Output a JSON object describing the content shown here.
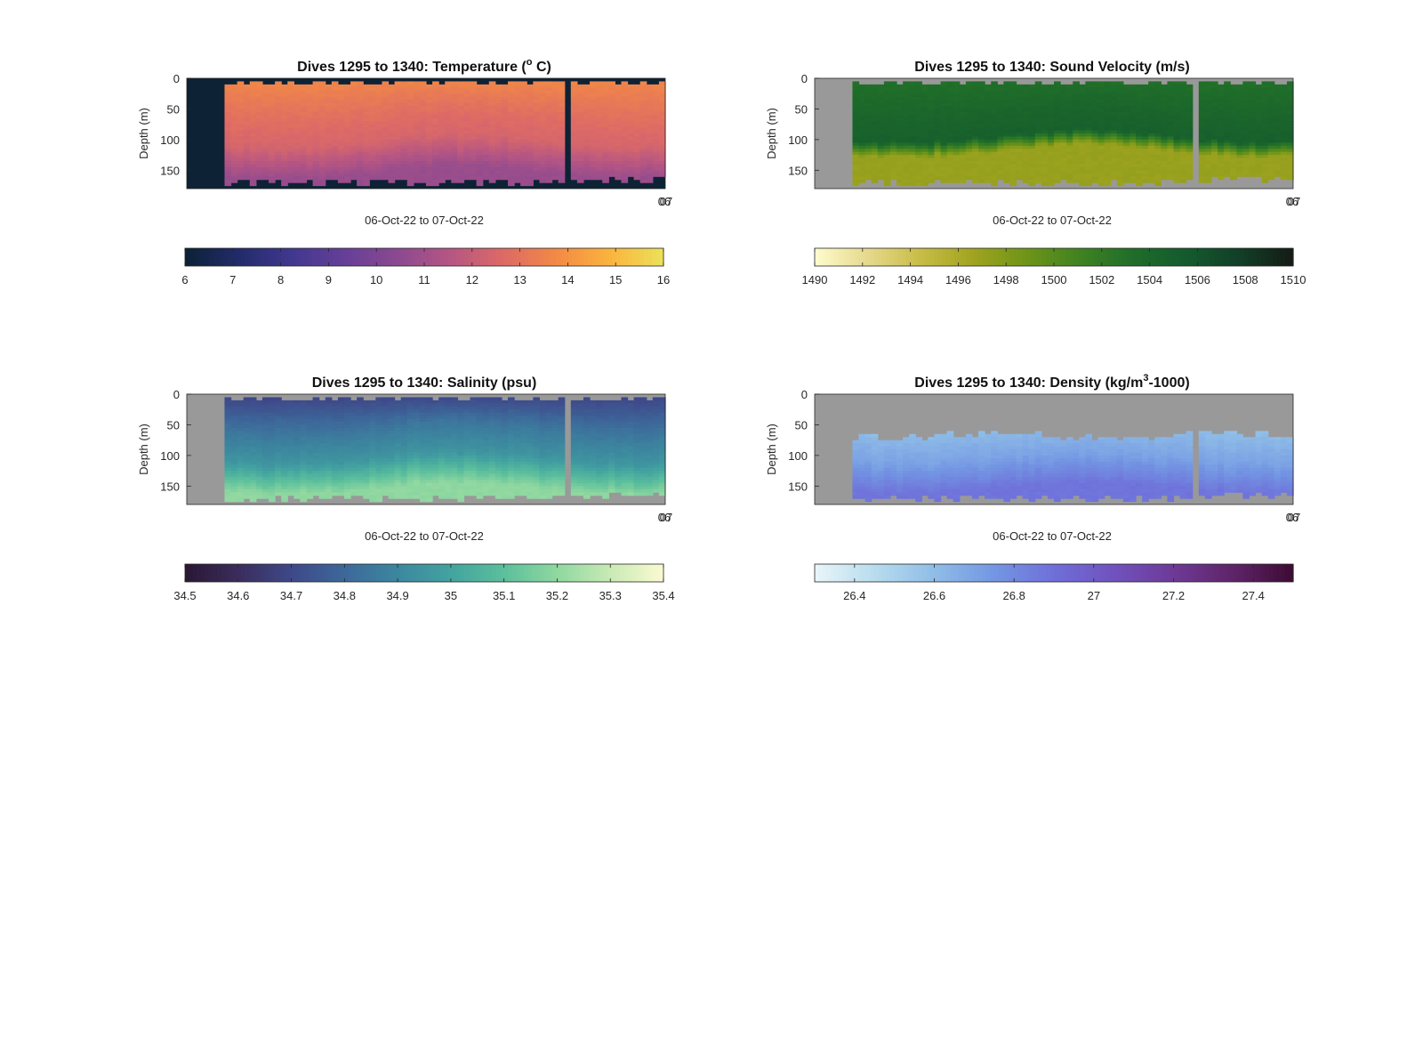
{
  "figure": {
    "background": "#ffffff",
    "nodata_color": "#999999"
  },
  "chart_data": [
    {
      "type": "heatmap",
      "title_prefix": "Dives 1295 to 1340: Temperature (",
      "title_sup": "o",
      "title_suffix": " C)",
      "ylabel": "Depth (m)",
      "xlabel": "06-Oct-22 to 07-Oct-22",
      "x_tick_labels": [
        "06",
        "07"
      ],
      "y_ticks": [
        0,
        50,
        100,
        150
      ],
      "ylim": [
        0,
        180
      ],
      "nodata_color": "#0d2235",
      "colorbar": {
        "min": 6,
        "max": 16,
        "ticks": [
          "6",
          "7",
          "8",
          "9",
          "10",
          "11",
          "12",
          "13",
          "14",
          "15",
          "16"
        ],
        "colors": [
          "#0b2135",
          "#222b6a",
          "#41378f",
          "#653f97",
          "#8b4990",
          "#b65683",
          "#dd6a66",
          "#f38a45",
          "#fab43e",
          "#ece15a"
        ]
      },
      "profile": {
        "top_value": 13.7,
        "mid_value": 12.4,
        "deep_value": 10.8
      }
    },
    {
      "type": "heatmap",
      "title_prefix": "Dives 1295 to 1340: Sound Velocity (m/s)",
      "title_sup": "",
      "title_suffix": "",
      "ylabel": "Depth (m)",
      "xlabel": "06-Oct-22 to 07-Oct-22",
      "x_tick_labels": [
        "06",
        "07"
      ],
      "y_ticks": [
        0,
        50,
        100,
        150
      ],
      "ylim": [
        0,
        180
      ],
      "nodata_color": "#999999",
      "colorbar": {
        "min": 1490,
        "max": 1510,
        "ticks": [
          "1490",
          "1492",
          "1494",
          "1496",
          "1498",
          "1500",
          "1502",
          "1504",
          "1506",
          "1508",
          "1510"
        ],
        "colors": [
          "#fefccd",
          "#e6d98c",
          "#c8bc46",
          "#9fa31f",
          "#6e9418",
          "#3f8221",
          "#1f6d2a",
          "#145a2e",
          "#123f27",
          "#141b14"
        ]
      },
      "profile": {
        "top_value": 1503.0,
        "mid_value": 1505.0,
        "deep_value": 1497.0
      }
    },
    {
      "type": "heatmap",
      "title_prefix": "Dives 1295 to 1340: Salinity (psu)",
      "title_sup": "",
      "title_suffix": "",
      "ylabel": "Depth (m)",
      "xlabel": "06-Oct-22 to 07-Oct-22",
      "x_tick_labels": [
        "06",
        "07"
      ],
      "y_ticks": [
        0,
        50,
        100,
        150
      ],
      "ylim": [
        0,
        180
      ],
      "nodata_color": "#999999",
      "colorbar": {
        "min": 34.5,
        "max": 35.4,
        "ticks": [
          "34.5",
          "34.6",
          "34.7",
          "34.8",
          "34.9",
          "35",
          "35.1",
          "35.2",
          "35.3",
          "35.4"
        ],
        "colors": [
          "#2a1733",
          "#3a2d5c",
          "#3e4889",
          "#3d689a",
          "#3c879f",
          "#43a3a0",
          "#5cbf9c",
          "#8fd7a0",
          "#c9eab4",
          "#fbfad2"
        ]
      },
      "profile": {
        "top_value": 34.68,
        "mid_value": 34.95,
        "deep_value": 35.2
      }
    },
    {
      "type": "heatmap",
      "title_prefix": "Dives 1295 to 1340: Density (kg/m",
      "title_sup": "3",
      "title_suffix": "-1000)",
      "ylabel": "Depth (m)",
      "xlabel": "06-Oct-22 to 07-Oct-22",
      "x_tick_labels": [
        "06",
        "07"
      ],
      "y_ticks": [
        0,
        50,
        100,
        150
      ],
      "ylim": [
        0,
        180
      ],
      "nodata_color": "#999999",
      "colorbar": {
        "min": 26.3,
        "max": 27.5,
        "ticks": [
          "26.4",
          "26.6",
          "26.8",
          "27",
          "27.2",
          "27.4"
        ],
        "tick_values": [
          26.4,
          26.6,
          26.8,
          27.0,
          27.2,
          27.4
        ],
        "colors": [
          "#e9f5f8",
          "#b8dcee",
          "#8fbde7",
          "#7396e3",
          "#6f6fd9",
          "#7052be",
          "#6e3a97",
          "#5e2468",
          "#3d0b33"
        ]
      },
      "profile": {
        "top_value": 26.45,
        "mid_value": 26.7,
        "deep_value": 26.88
      }
    }
  ]
}
